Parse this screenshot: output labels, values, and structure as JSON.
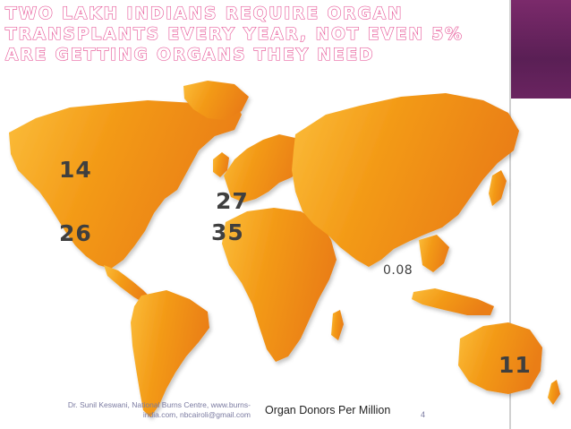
{
  "slide": {
    "title": "Two lakh Indians require organ transplants every year, not even 5% are getting organs they need",
    "footer": {
      "credit": "Dr. Sunil Keswani, National Burns Centre, www.burns-india.com, nbcairoli@gmail.com",
      "caption": "Organ Donors Per Million",
      "page_number": "4"
    }
  },
  "map": {
    "land_color": "#f39a17",
    "land_color_light": "#fbbd3a",
    "land_color_dark": "#ea7e12",
    "stats": [
      {
        "id": "canada",
        "value": "14"
      },
      {
        "id": "usa",
        "value": "26"
      },
      {
        "id": "uk",
        "value": "27"
      },
      {
        "id": "spain",
        "value": "35"
      },
      {
        "id": "india",
        "value": "0.08"
      },
      {
        "id": "australia",
        "value": "11"
      }
    ]
  }
}
